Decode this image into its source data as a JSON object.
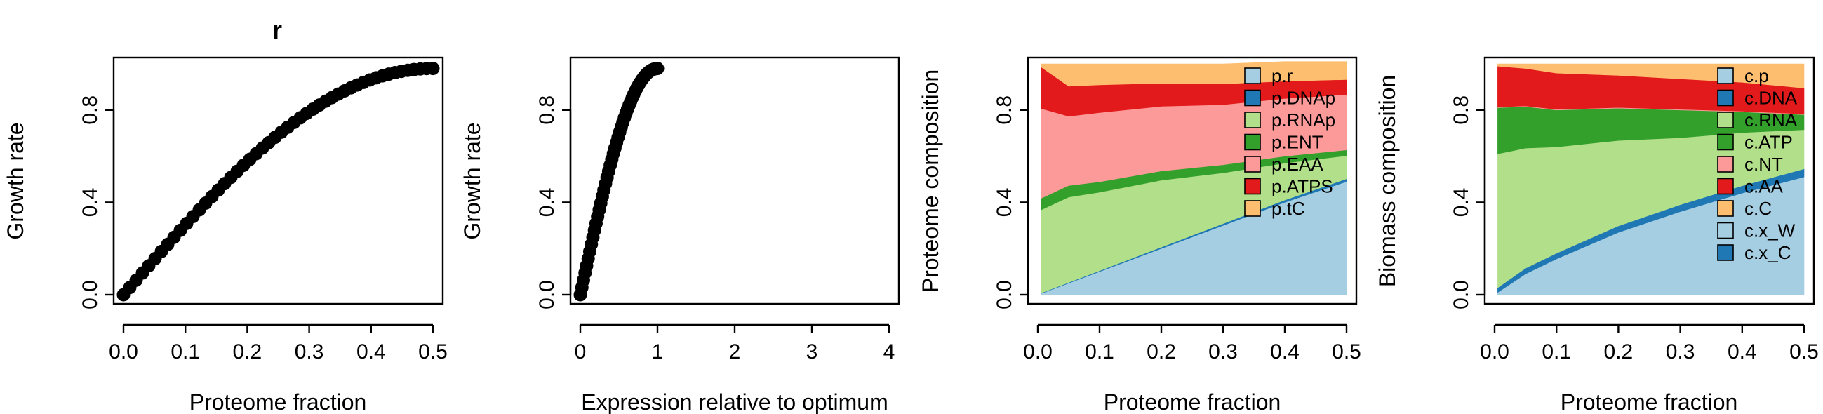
{
  "chart_data": [
    {
      "type": "scatter",
      "title": "r",
      "xlabel": "Proteome fraction",
      "ylabel": "Growth rate",
      "xlim": [
        0,
        0.5
      ],
      "ylim": [
        0,
        1
      ],
      "xticks": [
        "0.0",
        "0.1",
        "0.2",
        "0.3",
        "0.4",
        "0.5"
      ],
      "yticks": [
        "0.0",
        "0.4",
        "0.8"
      ],
      "grid": false,
      "series_shape": {
        "kind": "concave",
        "x_end": 0.5,
        "y_end": 0.98,
        "n_points": 50
      },
      "marker_color": "#000000"
    },
    {
      "type": "scatter",
      "title": "",
      "xlabel": "Expression relative to optimum",
      "ylabel": "Growth rate",
      "xlim": [
        0,
        4
      ],
      "ylim": [
        0,
        1
      ],
      "xticks": [
        "0",
        "1",
        "2",
        "3",
        "4"
      ],
      "yticks": [
        "0.0",
        "0.4",
        "0.8"
      ],
      "grid": false,
      "series_shape": {
        "kind": "concave",
        "x_end": 1.0,
        "y_end": 0.98,
        "n_points": 50
      },
      "marker_color": "#000000"
    },
    {
      "type": "area",
      "title": "",
      "xlabel": "Proteome fraction",
      "ylabel": "Proteome composition",
      "xlim": [
        0,
        0.5
      ],
      "ylim": [
        0,
        1
      ],
      "xticks": [
        "0.0",
        "0.1",
        "0.2",
        "0.3",
        "0.4",
        "0.5"
      ],
      "yticks": [
        "0.0",
        "0.4",
        "0.8"
      ],
      "legend_position": "top-right",
      "x": [
        0.005,
        0.05,
        0.1,
        0.2,
        0.3,
        0.4,
        0.5
      ],
      "series": [
        {
          "name": "p.r",
          "color": "#A6CEE3",
          "values": [
            0.005,
            0.05,
            0.1,
            0.2,
            0.3,
            0.4,
            0.49
          ]
        },
        {
          "name": "p.DNAp",
          "color": "#1F78B4",
          "values": [
            0.002,
            0.003,
            0.004,
            0.006,
            0.008,
            0.01,
            0.012
          ]
        },
        {
          "name": "p.RNAp",
          "color": "#B2DF8A",
          "values": [
            0.36,
            0.37,
            0.34,
            0.29,
            0.22,
            0.16,
            0.1
          ]
        },
        {
          "name": "p.ENT",
          "color": "#33A02C",
          "values": [
            0.05,
            0.05,
            0.045,
            0.04,
            0.035,
            0.03,
            0.025
          ]
        },
        {
          "name": "p.EAA",
          "color": "#FB9A99",
          "values": [
            0.39,
            0.3,
            0.3,
            0.28,
            0.26,
            0.25,
            0.24
          ]
        },
        {
          "name": "p.ATPS",
          "color": "#E31A1C",
          "values": [
            0.18,
            0.13,
            0.12,
            0.1,
            0.09,
            0.075,
            0.065
          ]
        },
        {
          "name": "p.tC",
          "color": "#FDBF6F",
          "values": [
            0.013,
            0.097,
            0.091,
            0.084,
            0.087,
            0.085,
            0.078
          ]
        }
      ]
    },
    {
      "type": "area",
      "title": "",
      "xlabel": "Proteome fraction",
      "ylabel": "Biomass composition",
      "xlim": [
        0,
        0.5
      ],
      "ylim": [
        0,
        1
      ],
      "xticks": [
        "0.0",
        "0.1",
        "0.2",
        "0.3",
        "0.4",
        "0.5"
      ],
      "yticks": [
        "0.0",
        "0.4",
        "0.8"
      ],
      "legend_position": "top-right",
      "x": [
        0.005,
        0.05,
        0.1,
        0.2,
        0.3,
        0.4,
        0.5
      ],
      "series": [
        {
          "name": "c.p",
          "color": "#A6CEE3",
          "values": [
            0.01,
            0.09,
            0.155,
            0.27,
            0.36,
            0.44,
            0.51
          ]
        },
        {
          "name": "c.DNA",
          "color": "#1F78B4",
          "values": [
            0.02,
            0.025,
            0.025,
            0.028,
            0.03,
            0.032,
            0.035
          ]
        },
        {
          "name": "c.RNA",
          "color": "#B2DF8A",
          "values": [
            0.58,
            0.52,
            0.46,
            0.37,
            0.29,
            0.23,
            0.17
          ]
        },
        {
          "name": "c.ATP",
          "color": "#33A02C",
          "values": [
            0.2,
            0.18,
            0.16,
            0.14,
            0.12,
            0.09,
            0.065
          ]
        },
        {
          "name": "c.NT",
          "color": "#FB9A99",
          "values": [
            0.003,
            0.003,
            0.003,
            0.003,
            0.003,
            0.003,
            0.003
          ]
        },
        {
          "name": "c.AA",
          "color": "#E31A1C",
          "values": [
            0.177,
            0.162,
            0.157,
            0.139,
            0.132,
            0.125,
            0.112
          ]
        },
        {
          "name": "c.C",
          "color": "#FDBF6F",
          "values": [
            0.01,
            0.02,
            0.04,
            0.05,
            0.065,
            0.08,
            0.105
          ]
        },
        {
          "name": "c.x_W",
          "color": "#A6CEE3",
          "values": [
            0,
            0,
            0,
            0,
            0,
            0,
            0
          ]
        },
        {
          "name": "c.x_C",
          "color": "#1F78B4",
          "values": [
            0,
            0,
            0,
            0,
            0,
            0,
            0
          ]
        }
      ]
    }
  ]
}
